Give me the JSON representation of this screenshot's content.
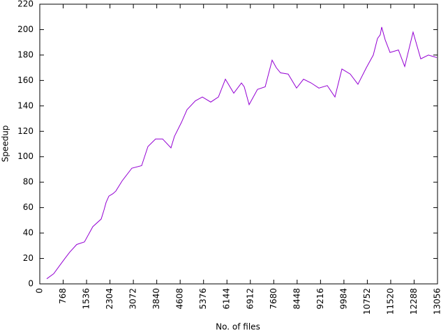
{
  "chart_data": {
    "type": "line",
    "x_label": "No. of files",
    "y_label": "Speedup",
    "series": [
      {
        "color": "#9400d3",
        "x": [
          229,
          458,
          641,
          825,
          985,
          1214,
          1466,
          1741,
          2016,
          2107,
          2176,
          2268,
          2405,
          2497,
          2703,
          3023,
          3344,
          3550,
          3802,
          4031,
          4306,
          4420,
          4650,
          4833,
          5108,
          5337,
          5612,
          5864,
          6093,
          6368,
          6620,
          6712,
          6872,
          7147,
          7399,
          7627,
          7765,
          7902,
          8154,
          8429,
          8658,
          8910,
          9162,
          9437,
          9689,
          9918,
          10192,
          10444,
          10719,
          10948,
          11086,
          11177,
          11223,
          11338,
          11498,
          11773,
          11979,
          12254,
          12506,
          12758,
          12895,
          13033
        ],
        "values": [
          4,
          8,
          14,
          20,
          25,
          31,
          33,
          45,
          51,
          58,
          64,
          69,
          71,
          73,
          81,
          91,
          93,
          108,
          114,
          114,
          107,
          116,
          127,
          137,
          144,
          147,
          143,
          147,
          161,
          150,
          158,
          155,
          141,
          153,
          155,
          176,
          170,
          166,
          165,
          154,
          161,
          158,
          154,
          156,
          147,
          169,
          165,
          157,
          170,
          180,
          193,
          196,
          202,
          192,
          182,
          184,
          171,
          198,
          177,
          180,
          179,
          178
        ]
      }
    ],
    "xlim": [
      0,
      13056
    ],
    "ylim": [
      0,
      220
    ],
    "xticks": [
      0,
      768,
      1536,
      2304,
      3072,
      3840,
      4608,
      5376,
      6144,
      6912,
      7680,
      8448,
      9216,
      9984,
      10752,
      11520,
      12288,
      13056
    ],
    "yticks": [
      0,
      20,
      40,
      60,
      80,
      100,
      120,
      140,
      160,
      180,
      200,
      220
    ]
  }
}
